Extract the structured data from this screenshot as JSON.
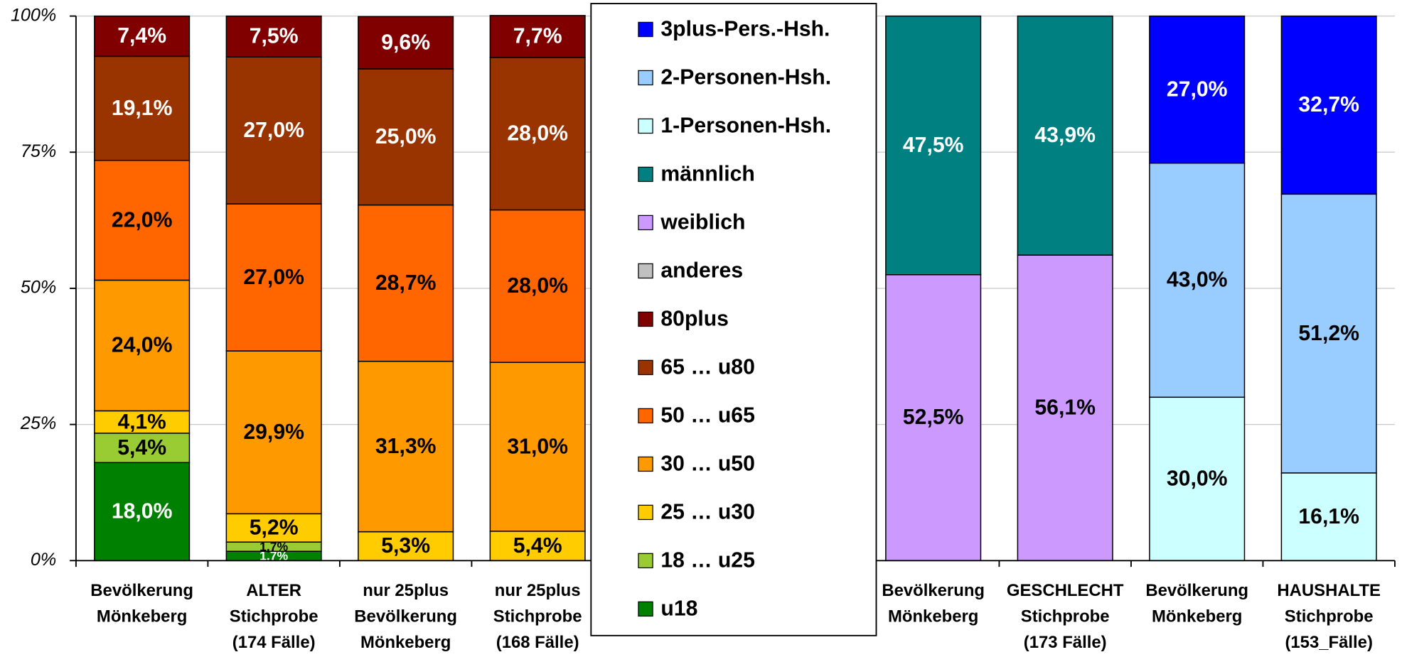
{
  "chart_data": {
    "type": "stacked_bar",
    "categories": [
      "Bevölkerung\nMönkeberg",
      "ALTER\nStichprobe\n(174 Fälle)",
      "nur 25plus\nBevölkerung\nMönkeberg",
      "nur 25plus\nStichprobe\n(168 Fälle)",
      null,
      null,
      "Bevölkerung\nMönkeberg",
      "GESCHLECHT\nStichprobe\n(173 Fälle)",
      "Bevölkerung\nMönkeberg",
      "HAUSHALTE\nStichprobe\n(153_Fälle)"
    ],
    "series": [
      {
        "name": "u18",
        "color": "#008000",
        "values": [
          18.0,
          1.7,
          null,
          null,
          null,
          null,
          null,
          null,
          null,
          null
        ],
        "value_labels": [
          "18,0%",
          "1,7%",
          null,
          null,
          null,
          null,
          null,
          null,
          null,
          null
        ]
      },
      {
        "name": "18 … u25",
        "color": "#99cc33",
        "values": [
          5.4,
          1.7,
          null,
          null,
          null,
          null,
          null,
          null,
          null,
          null
        ],
        "value_labels": [
          "5,4%",
          "1,7%",
          null,
          null,
          null,
          null,
          null,
          null,
          null,
          null
        ]
      },
      {
        "name": "25 … u30",
        "color": "#ffcc00",
        "values": [
          4.1,
          5.2,
          5.3,
          5.4,
          null,
          null,
          null,
          null,
          null,
          null
        ],
        "value_labels": [
          "4,1%",
          "5,2%",
          "5,3%",
          "5,4%",
          null,
          null,
          null,
          null,
          null,
          null
        ]
      },
      {
        "name": "30 … u50",
        "color": "#ff9900",
        "values": [
          24.0,
          29.9,
          31.3,
          31.0,
          null,
          null,
          null,
          null,
          null,
          null
        ],
        "value_labels": [
          "24,0%",
          "29,9%",
          "31,3%",
          "31,0%",
          null,
          null,
          null,
          null,
          null,
          null
        ]
      },
      {
        "name": "50 … u65",
        "color": "#ff6600",
        "values": [
          22.0,
          27.0,
          28.7,
          28.0,
          null,
          null,
          null,
          null,
          null,
          null
        ],
        "value_labels": [
          "22,0%",
          "27,0%",
          "28,7%",
          "28,0%",
          null,
          null,
          null,
          null,
          null,
          null
        ]
      },
      {
        "name": "65 … u80",
        "color": "#993300",
        "values": [
          19.1,
          27.0,
          25.0,
          28.0,
          null,
          null,
          null,
          null,
          null,
          null
        ],
        "value_labels": [
          "19,1%",
          "27,0%",
          "25,0%",
          "28,0%",
          null,
          null,
          null,
          null,
          null,
          null
        ]
      },
      {
        "name": "80plus",
        "color": "#800000",
        "values": [
          7.4,
          7.5,
          9.6,
          7.7,
          null,
          null,
          null,
          null,
          null,
          null
        ],
        "value_labels": [
          "7,4%",
          "7,5%",
          "9,6%",
          "7,7%",
          null,
          null,
          null,
          null,
          null,
          null
        ]
      },
      {
        "name": "anderes",
        "color": "#c0c0c0",
        "values": [
          null,
          null,
          null,
          null,
          null,
          null,
          null,
          null,
          null,
          null
        ]
      },
      {
        "name": "weiblich",
        "color": "#cc99ff",
        "values": [
          null,
          null,
          null,
          null,
          null,
          null,
          52.5,
          56.1,
          null,
          null
        ],
        "value_labels": [
          null,
          null,
          null,
          null,
          null,
          null,
          "52,5%",
          "56,1%",
          null,
          null
        ]
      },
      {
        "name": "männlich",
        "color": "#008080",
        "values": [
          null,
          null,
          null,
          null,
          null,
          null,
          47.5,
          43.9,
          null,
          null
        ],
        "value_labels": [
          null,
          null,
          null,
          null,
          null,
          null,
          "47,5%",
          "43,9%",
          null,
          null
        ]
      },
      {
        "name": "1-Personen-Hsh.",
        "color": "#ccffff",
        "values": [
          null,
          null,
          null,
          null,
          null,
          null,
          null,
          null,
          30.0,
          16.1
        ],
        "value_labels": [
          null,
          null,
          null,
          null,
          null,
          null,
          null,
          null,
          "30,0%",
          "16,1%"
        ]
      },
      {
        "name": "2-Personen-Hsh.",
        "color": "#99ccff",
        "values": [
          null,
          null,
          null,
          null,
          null,
          null,
          null,
          null,
          43.0,
          51.2
        ],
        "value_labels": [
          null,
          null,
          null,
          null,
          null,
          null,
          null,
          null,
          "43,0%",
          "51,2%"
        ]
      },
      {
        "name": "3plus-Pers.-Hsh.",
        "color": "#0000ff",
        "values": [
          null,
          null,
          null,
          null,
          null,
          null,
          null,
          null,
          27.0,
          32.7
        ],
        "value_labels": [
          null,
          null,
          null,
          null,
          null,
          null,
          null,
          null,
          "27,0%",
          "32,7%"
        ]
      }
    ],
    "ylim": [
      0,
      100
    ],
    "yticks": [
      {
        "value": 0,
        "label": "0%"
      },
      {
        "value": 25,
        "label": "25%"
      },
      {
        "value": 50,
        "label": "50%"
      },
      {
        "value": 75,
        "label": "75%"
      },
      {
        "value": 100,
        "label": "100%"
      }
    ],
    "grid": true
  }
}
